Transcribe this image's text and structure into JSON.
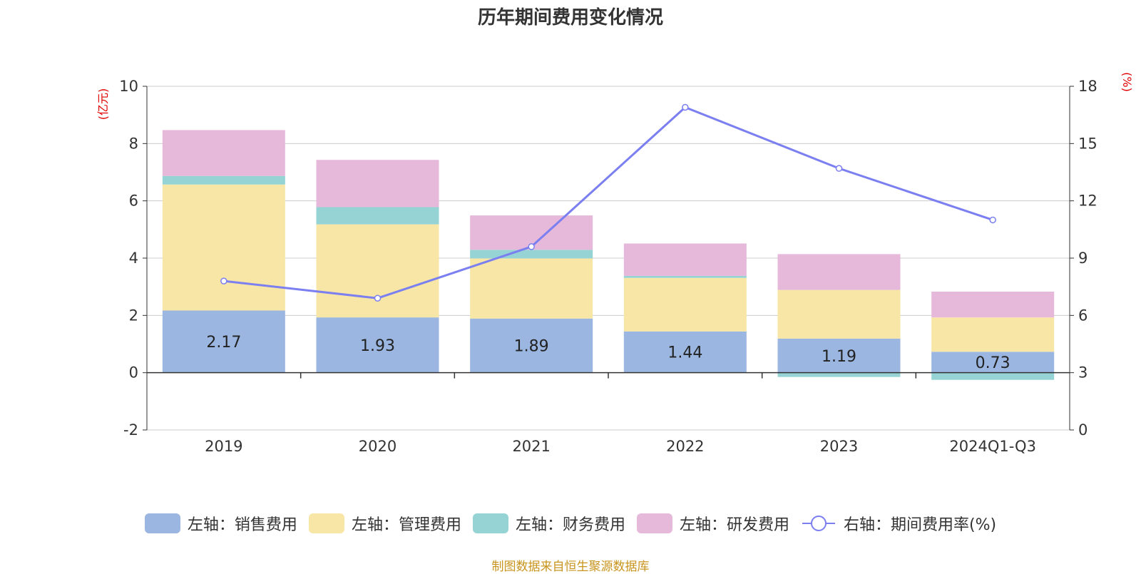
{
  "title": "历年期间费用变化情况",
  "source": "制图数据来自恒生聚源数据库",
  "colors": {
    "sales": "#9bb6e0",
    "admin": "#f7e6a6",
    "finance": "#95d3d4",
    "rd": "#e6b8d9",
    "rate": "#7b7ff0",
    "axis_unit": "#e00000",
    "grid": "#cccccc",
    "axis": "#333333"
  },
  "legend": [
    {
      "label": "左轴：销售费用",
      "color": "#9bb6e0",
      "kind": "bar"
    },
    {
      "label": "左轴：管理费用",
      "color": "#f7e6a6",
      "kind": "bar"
    },
    {
      "label": "左轴：财务费用",
      "color": "#95d3d4",
      "kind": "bar"
    },
    {
      "label": "左轴：研发费用",
      "color": "#e6b8d9",
      "kind": "bar"
    },
    {
      "label": "右轴：期间费用率(%)",
      "color": "#7b7ff0",
      "kind": "line"
    }
  ],
  "chart_data": {
    "type": "bar",
    "stacked": true,
    "title": "历年期间费用变化情况",
    "categories": [
      "2019",
      "2020",
      "2021",
      "2022",
      "2023",
      "2024Q1-Q3"
    ],
    "y_left": {
      "label": "(亿元)",
      "range": [
        -2,
        10
      ],
      "ticks": [
        -2,
        0,
        2,
        4,
        6,
        8,
        10
      ]
    },
    "y_right": {
      "label": "(%)",
      "range": [
        0,
        18
      ],
      "ticks": [
        0,
        3,
        6,
        9,
        12,
        15,
        18
      ]
    },
    "series": [
      {
        "name": "左轴：销售费用",
        "axis": "left",
        "type": "bar",
        "color": "#9bb6e0",
        "values": [
          2.17,
          1.93,
          1.89,
          1.44,
          1.19,
          0.73
        ],
        "labels": [
          "2.17",
          "1.93",
          "1.89",
          "1.44",
          "1.19",
          "0.73"
        ]
      },
      {
        "name": "左轴：管理费用",
        "axis": "left",
        "type": "bar",
        "color": "#f7e6a6",
        "values": [
          4.4,
          3.25,
          2.1,
          1.87,
          1.7,
          1.2
        ]
      },
      {
        "name": "左轴：财务费用",
        "axis": "left",
        "type": "bar",
        "color": "#95d3d4",
        "values": [
          0.3,
          0.6,
          0.3,
          0.07,
          -0.15,
          -0.25
        ]
      },
      {
        "name": "左轴：研发费用",
        "axis": "left",
        "type": "bar",
        "color": "#e6b8d9",
        "values": [
          1.6,
          1.65,
          1.2,
          1.13,
          1.25,
          0.9
        ]
      },
      {
        "name": "右轴：期间费用率(%)",
        "axis": "right",
        "type": "line",
        "color": "#7b7ff0",
        "values": [
          7.8,
          6.9,
          9.6,
          16.9,
          13.7,
          11.0
        ]
      }
    ],
    "grid": true,
    "legend_position": "bottom"
  }
}
